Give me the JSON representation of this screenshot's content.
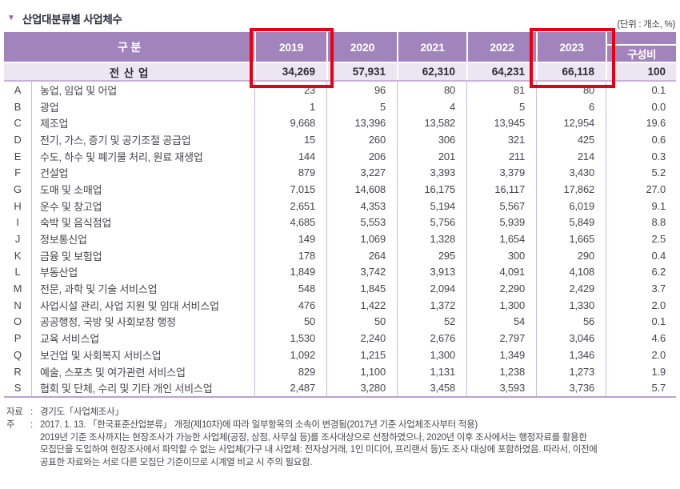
{
  "title": "산업대분류별 사업체수",
  "unit_label": "(단위 : 개소, %)",
  "table": {
    "col_headers": {
      "category": "구 분",
      "years": [
        "2019",
        "2020",
        "2021",
        "2022",
        "2023"
      ],
      "ratio": "구성비"
    },
    "total_row": {
      "label": "전 산 업",
      "values": [
        "34,269",
        "57,931",
        "62,310",
        "64,231",
        "66,118"
      ],
      "ratio": "100"
    },
    "rows": [
      {
        "code": "A",
        "name": "농업, 임업 및 어업",
        "values": [
          "23",
          "96",
          "80",
          "81",
          "80"
        ],
        "ratio": "0.1"
      },
      {
        "code": "B",
        "name": "광업",
        "values": [
          "1",
          "5",
          "4",
          "5",
          "6"
        ],
        "ratio": "0.0"
      },
      {
        "code": "C",
        "name": "제조업",
        "values": [
          "9,668",
          "13,396",
          "13,582",
          "13,945",
          "12,954"
        ],
        "ratio": "19.6"
      },
      {
        "code": "D",
        "name": "전기, 가스, 증기 및 공기조절 공급업",
        "values": [
          "15",
          "260",
          "306",
          "321",
          "425"
        ],
        "ratio": "0.6"
      },
      {
        "code": "E",
        "name": "수도, 하수 및 폐기물 처리, 원료 재생업",
        "values": [
          "144",
          "206",
          "201",
          "211",
          "214"
        ],
        "ratio": "0.3"
      },
      {
        "code": "F",
        "name": "건설업",
        "values": [
          "879",
          "3,227",
          "3,393",
          "3,379",
          "3,430"
        ],
        "ratio": "5.2"
      },
      {
        "code": "G",
        "name": "도매 및 소매업",
        "values": [
          "7,015",
          "14,608",
          "16,175",
          "16,117",
          "17,862"
        ],
        "ratio": "27.0"
      },
      {
        "code": "H",
        "name": "운수 및 창고업",
        "values": [
          "2,651",
          "4,353",
          "5,194",
          "5,567",
          "6,019"
        ],
        "ratio": "9.1"
      },
      {
        "code": "I",
        "name": "숙박 및 음식점업",
        "values": [
          "4,685",
          "5,553",
          "5,756",
          "5,939",
          "5,849"
        ],
        "ratio": "8.8"
      },
      {
        "code": "J",
        "name": "정보통신업",
        "values": [
          "149",
          "1,069",
          "1,328",
          "1,654",
          "1,665"
        ],
        "ratio": "2.5"
      },
      {
        "code": "K",
        "name": "금융 및 보험업",
        "values": [
          "178",
          "264",
          "295",
          "300",
          "290"
        ],
        "ratio": "0.4"
      },
      {
        "code": "L",
        "name": "부동산업",
        "values": [
          "1,849",
          "3,742",
          "3,913",
          "4,091",
          "4,108"
        ],
        "ratio": "6.2"
      },
      {
        "code": "M",
        "name": "전문, 과학 및 기술 서비스업",
        "values": [
          "548",
          "1,845",
          "2,094",
          "2,290",
          "2,429"
        ],
        "ratio": "3.7"
      },
      {
        "code": "N",
        "name": "사업시설 관리, 사업 지원 및 임대 서비스업",
        "values": [
          "476",
          "1,422",
          "1,372",
          "1,300",
          "1,330"
        ],
        "ratio": "2.0"
      },
      {
        "code": "O",
        "name": "공공행정, 국방 및 사회보장 행정",
        "values": [
          "50",
          "50",
          "52",
          "54",
          "56"
        ],
        "ratio": "0.1"
      },
      {
        "code": "P",
        "name": "교육 서비스업",
        "values": [
          "1,530",
          "2,240",
          "2,676",
          "2,797",
          "3,046"
        ],
        "ratio": "4.6"
      },
      {
        "code": "Q",
        "name": "보건업 및 사회복지 서비스업",
        "values": [
          "1,092",
          "1,215",
          "1,300",
          "1,349",
          "1,346"
        ],
        "ratio": "2.0"
      },
      {
        "code": "R",
        "name": "예술, 스포츠 및 여가관련 서비스업",
        "values": [
          "829",
          "1,100",
          "1,131",
          "1,238",
          "1,273"
        ],
        "ratio": "1.9"
      },
      {
        "code": "S",
        "name": "협회 및 단체, 수리 및 기타 개인 서비스업",
        "values": [
          "2,487",
          "3,280",
          "3,458",
          "3,593",
          "3,736"
        ],
        "ratio": "5.7"
      }
    ]
  },
  "highlights": {
    "color": "#e60012",
    "highlighted_years": [
      "2019",
      "2023"
    ]
  },
  "footnotes": {
    "source_label": "자료",
    "note_label": "주",
    "colon": ":",
    "source_text": "경기도「사업체조사」",
    "note_lines": [
      "2017. 1. 13. 「한국표준산업분류」 개정(제10차)에 따라 일부항목의 소속이 변경됨(2017년 기준 사업체조사부터 적용)",
      "2019년 기준 조사까지는 현장조사가 가능한 사업체(공장, 상점, 사무실 등)를 조사대상으로 선정하였으나, 2020년 이후 조사에서는 행정자료를 활용한",
      "모집단을 도입하여 현장조사에서 파악할 수 없는 사업체(가구 내 사업체: 전자상거래, 1인 미디어, 프리랜서 등)도 조사 대상에 포함하였음. 따라서, 이전에",
      "공표한 자료와는 서로 다른 모집단 기준이므로 시계열 비교 시 주의 필요함."
    ]
  },
  "colors": {
    "header_bg": "#a284bd",
    "total_row_bg": "#ece5f2",
    "body_border": "#cbb8dd",
    "highlight": "#e60012"
  }
}
